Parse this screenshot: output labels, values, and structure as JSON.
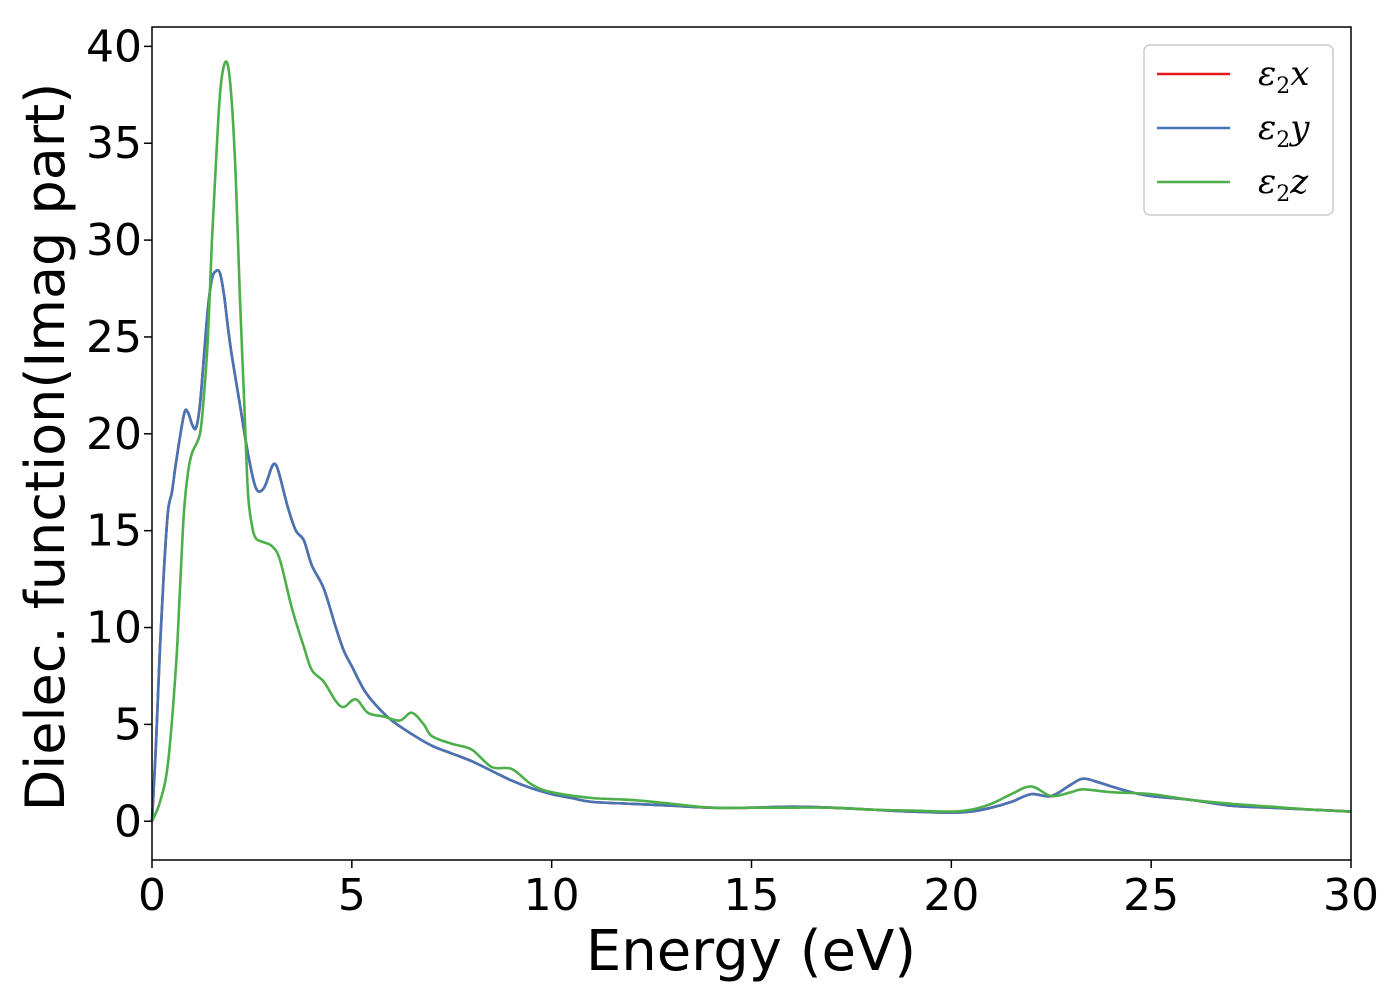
{
  "chart_data": {
    "type": "line",
    "xlabel": "Energy (eV)",
    "ylabel": "Dielec. function(Imag part)",
    "xlim": [
      0,
      30
    ],
    "ylim": [
      -2,
      41
    ],
    "xticks": [
      "0",
      "5",
      "10",
      "15",
      "20",
      "25",
      "30"
    ],
    "yticks": [
      "0",
      "5",
      "10",
      "15",
      "20",
      "25",
      "30",
      "35",
      "40"
    ],
    "grid": false,
    "legend_position": "top-right",
    "series": [
      {
        "name": "ε2x",
        "legend_main": "ε",
        "legend_sub": "2",
        "legend_axis": "x",
        "color": "#e41a1c",
        "x": [
          0,
          0.1,
          0.2,
          0.3,
          0.4,
          0.5,
          0.6,
          0.8,
          0.9,
          1.0,
          1.1,
          1.2,
          1.3,
          1.4,
          1.5,
          1.6,
          1.7,
          1.8,
          1.9,
          2.0,
          2.2,
          2.4,
          2.6,
          2.8,
          3.0,
          3.1,
          3.2,
          3.4,
          3.6,
          3.8,
          4.0,
          4.3,
          4.6,
          4.8,
          5.0,
          5.3,
          5.6,
          6.0,
          6.5,
          7.0,
          7.5,
          8.0,
          8.5,
          9.0,
          9.5,
          10,
          10.5,
          11,
          12,
          13,
          14,
          15,
          16,
          17,
          18,
          19,
          20,
          20.5,
          21,
          21.5,
          22,
          22.5,
          23,
          23.3,
          23.7,
          24,
          24.5,
          25,
          26,
          27,
          28,
          29,
          30
        ],
        "values": [
          0,
          4,
          9,
          13,
          16,
          17,
          18.5,
          21,
          21.1,
          20.5,
          20.3,
          21.5,
          24,
          26.5,
          28,
          28.4,
          28.3,
          27.2,
          25.5,
          24,
          21.5,
          19,
          17.2,
          17.2,
          18.3,
          18.4,
          17.8,
          16.2,
          15,
          14.5,
          13.2,
          12,
          10,
          8.8,
          8,
          6.8,
          6,
          5.2,
          4.5,
          3.9,
          3.5,
          3.1,
          2.6,
          2.1,
          1.7,
          1.4,
          1.2,
          1.0,
          0.9,
          0.8,
          0.7,
          0.7,
          0.75,
          0.7,
          0.6,
          0.5,
          0.45,
          0.5,
          0.7,
          1.0,
          1.4,
          1.3,
          1.9,
          2.2,
          2.0,
          1.8,
          1.5,
          1.3,
          1.1,
          0.8,
          0.7,
          0.6,
          0.5
        ]
      },
      {
        "name": "ε2y",
        "legend_main": "ε",
        "legend_sub": "2",
        "legend_axis": "y",
        "color": "#4575b4",
        "x": [
          0,
          0.1,
          0.2,
          0.3,
          0.4,
          0.5,
          0.6,
          0.8,
          0.9,
          1.0,
          1.1,
          1.2,
          1.3,
          1.4,
          1.5,
          1.6,
          1.7,
          1.8,
          1.9,
          2.0,
          2.2,
          2.4,
          2.6,
          2.8,
          3.0,
          3.1,
          3.2,
          3.4,
          3.6,
          3.8,
          4.0,
          4.3,
          4.6,
          4.8,
          5.0,
          5.3,
          5.6,
          6.0,
          6.5,
          7.0,
          7.5,
          8.0,
          8.5,
          9.0,
          9.5,
          10,
          10.5,
          11,
          12,
          13,
          14,
          15,
          16,
          17,
          18,
          19,
          20,
          20.5,
          21,
          21.5,
          22,
          22.5,
          23,
          23.3,
          23.7,
          24,
          24.5,
          25,
          26,
          27,
          28,
          29,
          30
        ],
        "values": [
          0,
          4,
          9,
          13,
          16,
          17,
          18.5,
          21,
          21.1,
          20.5,
          20.3,
          21.5,
          24,
          26.5,
          28,
          28.4,
          28.3,
          27.2,
          25.5,
          24,
          21.5,
          19,
          17.2,
          17.2,
          18.3,
          18.4,
          17.8,
          16.2,
          15,
          14.5,
          13.2,
          12,
          10,
          8.8,
          8,
          6.8,
          6,
          5.2,
          4.5,
          3.9,
          3.5,
          3.1,
          2.6,
          2.1,
          1.7,
          1.4,
          1.2,
          1.0,
          0.9,
          0.8,
          0.7,
          0.7,
          0.75,
          0.7,
          0.6,
          0.5,
          0.45,
          0.5,
          0.7,
          1.0,
          1.4,
          1.3,
          1.9,
          2.2,
          2.0,
          1.8,
          1.5,
          1.3,
          1.1,
          0.8,
          0.7,
          0.6,
          0.5
        ]
      },
      {
        "name": "ε2z",
        "legend_main": "ε",
        "legend_sub": "2",
        "legend_axis": "z",
        "color": "#4daf4a",
        "x": [
          0,
          0.2,
          0.4,
          0.6,
          0.7,
          0.8,
          0.9,
          1.0,
          1.2,
          1.3,
          1.4,
          1.5,
          1.6,
          1.7,
          1.8,
          1.9,
          2.0,
          2.1,
          2.2,
          2.3,
          2.4,
          2.5,
          2.6,
          2.8,
          3.0,
          3.2,
          3.5,
          3.8,
          4.0,
          4.3,
          4.6,
          4.8,
          5.1,
          5.4,
          5.8,
          6.2,
          6.5,
          6.8,
          7.0,
          7.5,
          8.0,
          8.5,
          9.0,
          9.5,
          10,
          11,
          12,
          13,
          14,
          15,
          16,
          17,
          18,
          19,
          20,
          20.5,
          21,
          21.5,
          22,
          22.5,
          23,
          23.3,
          24,
          25,
          26,
          27,
          28,
          29,
          30
        ],
        "values": [
          0,
          1,
          3,
          8,
          12,
          16,
          18,
          19,
          20,
          22,
          25,
          30,
          34,
          37.5,
          39,
          39,
          37,
          33,
          27,
          22,
          17,
          15.3,
          14.6,
          14.4,
          14.2,
          13.5,
          11,
          9,
          7.8,
          7.2,
          6.2,
          5.9,
          6.3,
          5.6,
          5.4,
          5.2,
          5.6,
          5.0,
          4.4,
          4.0,
          3.7,
          2.8,
          2.7,
          1.9,
          1.5,
          1.2,
          1.1,
          0.9,
          0.7,
          0.7,
          0.7,
          0.7,
          0.6,
          0.55,
          0.5,
          0.6,
          0.9,
          1.4,
          1.8,
          1.3,
          1.5,
          1.65,
          1.5,
          1.4,
          1.1,
          0.9,
          0.75,
          0.6,
          0.5
        ]
      }
    ]
  }
}
